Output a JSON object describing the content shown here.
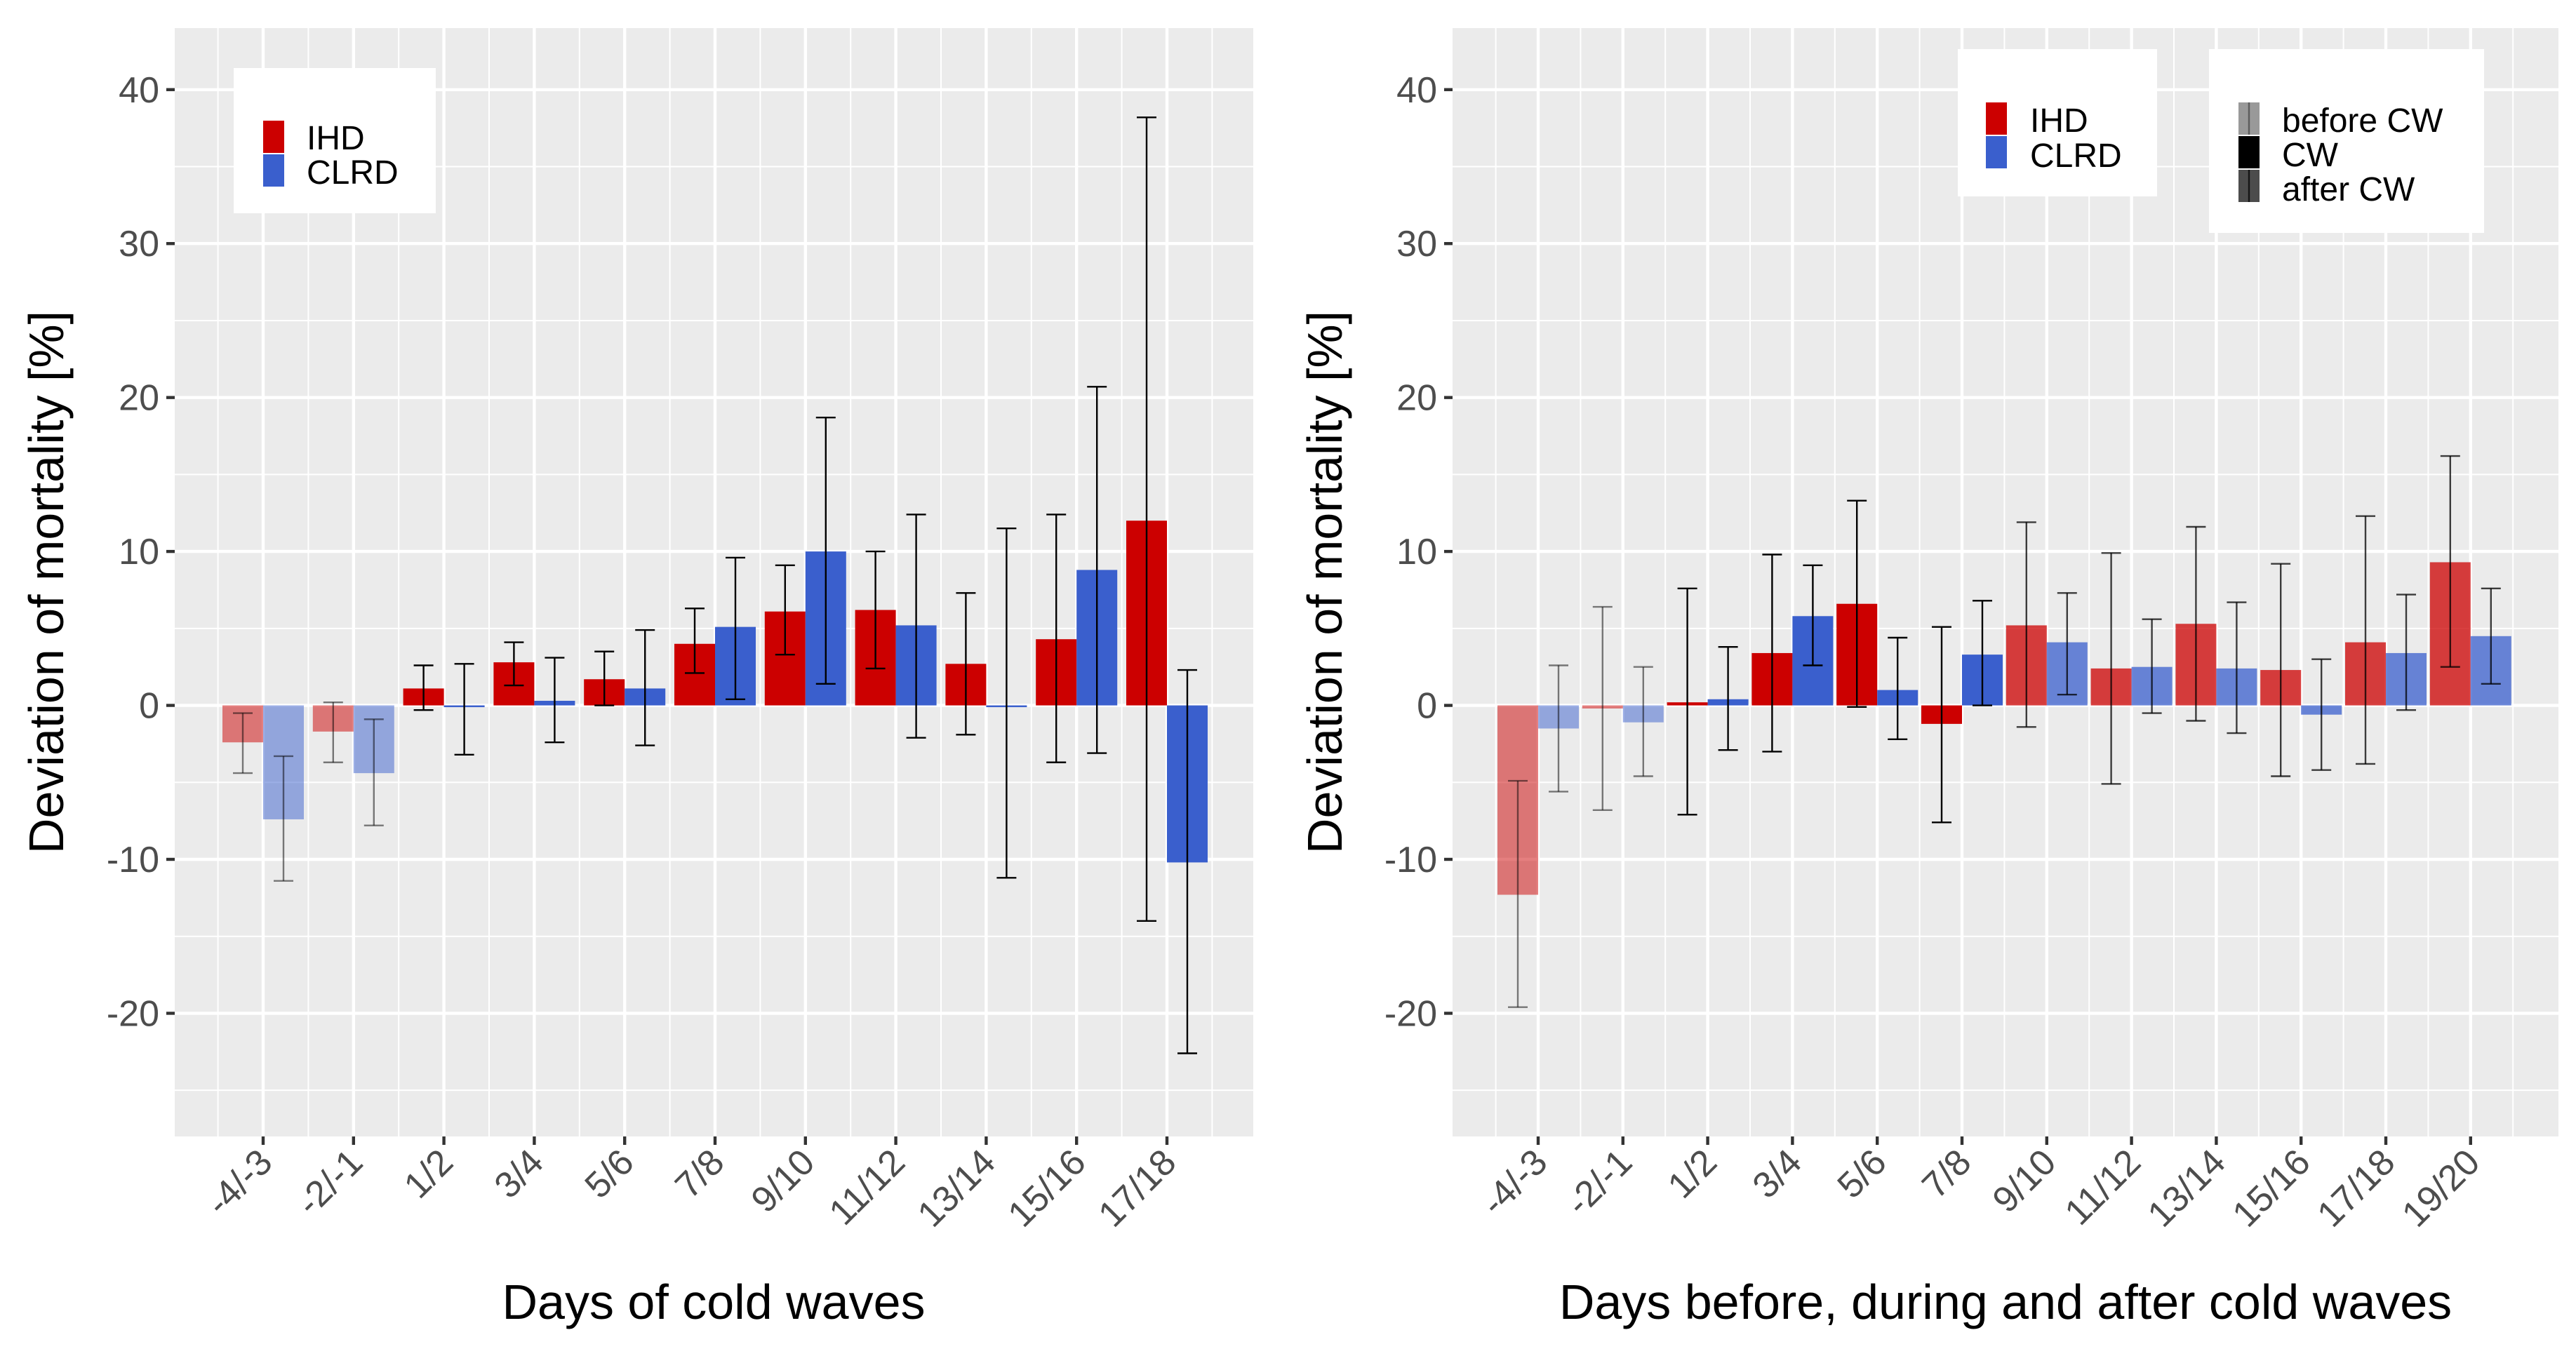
{
  "colors": {
    "IHD": "#cc0000",
    "CLRD": "#3a5fcd",
    "error_bar": "#000000"
  },
  "chart_data": [
    {
      "type": "bar",
      "title": "",
      "xlabel": "Days of cold waves",
      "ylabel": "Deviation of mortality [%]",
      "ylim": [
        -28,
        44
      ],
      "yticks": [
        -20,
        -10,
        0,
        10,
        20,
        30,
        40
      ],
      "ytick_labels": [
        "-20",
        "-10",
        "0",
        "10",
        "20",
        "30",
        "40"
      ],
      "categories": [
        "-4/-3",
        "-2/-1",
        "1/2",
        "3/4",
        "5/6",
        "7/8",
        "9/10",
        "11/12",
        "13/14",
        "15/16",
        "17/18"
      ],
      "legend": {
        "position": "top-left",
        "entries": [
          "IHD",
          "CLRD"
        ]
      },
      "series": [
        {
          "name": "IHD",
          "values": [
            -2.4,
            -1.7,
            1.1,
            2.8,
            1.7,
            4.0,
            6.1,
            6.2,
            2.7,
            4.3,
            12.0
          ],
          "lower": [
            -4.4,
            -3.7,
            -0.3,
            1.3,
            0.0,
            2.1,
            3.3,
            2.4,
            -1.9,
            -3.7,
            -14.0
          ],
          "upper": [
            -0.5,
            0.2,
            2.6,
            4.1,
            3.5,
            6.3,
            9.1,
            10.0,
            7.3,
            12.4,
            38.2
          ],
          "phase": [
            "before",
            "before",
            "during",
            "during",
            "during",
            "during",
            "during",
            "during",
            "during",
            "during",
            "during"
          ]
        },
        {
          "name": "CLRD",
          "values": [
            -7.4,
            -4.4,
            -0.1,
            0.3,
            1.1,
            5.1,
            10.0,
            5.2,
            0.0,
            8.8,
            -10.2
          ],
          "lower": [
            -11.4,
            -7.8,
            -3.2,
            -2.4,
            -2.6,
            0.4,
            1.4,
            -2.1,
            -11.2,
            -3.1,
            -22.6
          ],
          "upper": [
            -3.3,
            -0.9,
            2.7,
            3.1,
            4.9,
            9.6,
            18.7,
            12.4,
            11.5,
            20.7,
            2.3
          ],
          "phase": [
            "before",
            "before",
            "during",
            "during",
            "during",
            "during",
            "during",
            "during",
            "during",
            "during",
            "during"
          ]
        }
      ]
    },
    {
      "type": "bar",
      "title": "",
      "xlabel": "Days before, during and after cold waves",
      "ylabel": "Deviation of mortality [%]",
      "ylim": [
        -28,
        44
      ],
      "yticks": [
        -20,
        -10,
        0,
        10,
        20,
        30,
        40
      ],
      "ytick_labels": [
        "-20",
        "-10",
        "0",
        "10",
        "20",
        "30",
        "40"
      ],
      "categories": [
        "-4/-3",
        "-2/-1",
        "1/2",
        "3/4",
        "5/6",
        "7/8",
        "9/10",
        "11/12",
        "13/14",
        "15/16",
        "17/18",
        "19/20"
      ],
      "legend": {
        "position": "top-right",
        "entries": [
          "IHD",
          "CLRD"
        ]
      },
      "phase_legend": {
        "position": "top-right",
        "entries": [
          "before CW",
          "CW",
          "after CW"
        ]
      },
      "series": [
        {
          "name": "IHD",
          "values": [
            -12.3,
            -0.2,
            0.2,
            3.4,
            6.6,
            -1.2,
            5.2,
            2.4,
            5.3,
            2.3,
            4.1,
            9.3
          ],
          "lower": [
            -19.6,
            -6.8,
            -7.1,
            -3.0,
            -0.1,
            -7.6,
            -1.4,
            -5.1,
            -1.0,
            -4.6,
            -3.8,
            2.5
          ],
          "upper": [
            -4.9,
            6.4,
            7.6,
            9.8,
            13.3,
            5.1,
            11.9,
            9.9,
            11.6,
            9.2,
            12.3,
            16.2
          ],
          "phase": [
            "before",
            "before",
            "during",
            "during",
            "during",
            "during",
            "after",
            "after",
            "after",
            "after",
            "after",
            "after"
          ]
        },
        {
          "name": "CLRD",
          "values": [
            -1.5,
            -1.1,
            0.4,
            5.8,
            1.0,
            3.3,
            4.1,
            2.5,
            2.4,
            -0.6,
            3.4,
            4.5
          ],
          "lower": [
            -5.6,
            -4.6,
            -2.9,
            2.6,
            -2.2,
            0.0,
            0.7,
            -0.5,
            -1.8,
            -4.2,
            -0.3,
            1.4
          ],
          "upper": [
            2.6,
            2.5,
            3.8,
            9.1,
            4.4,
            6.8,
            7.3,
            5.6,
            6.7,
            3.0,
            7.2,
            7.6
          ],
          "phase": [
            "before",
            "before",
            "during",
            "during",
            "during",
            "during",
            "after",
            "after",
            "after",
            "after",
            "after",
            "after"
          ]
        }
      ]
    }
  ]
}
